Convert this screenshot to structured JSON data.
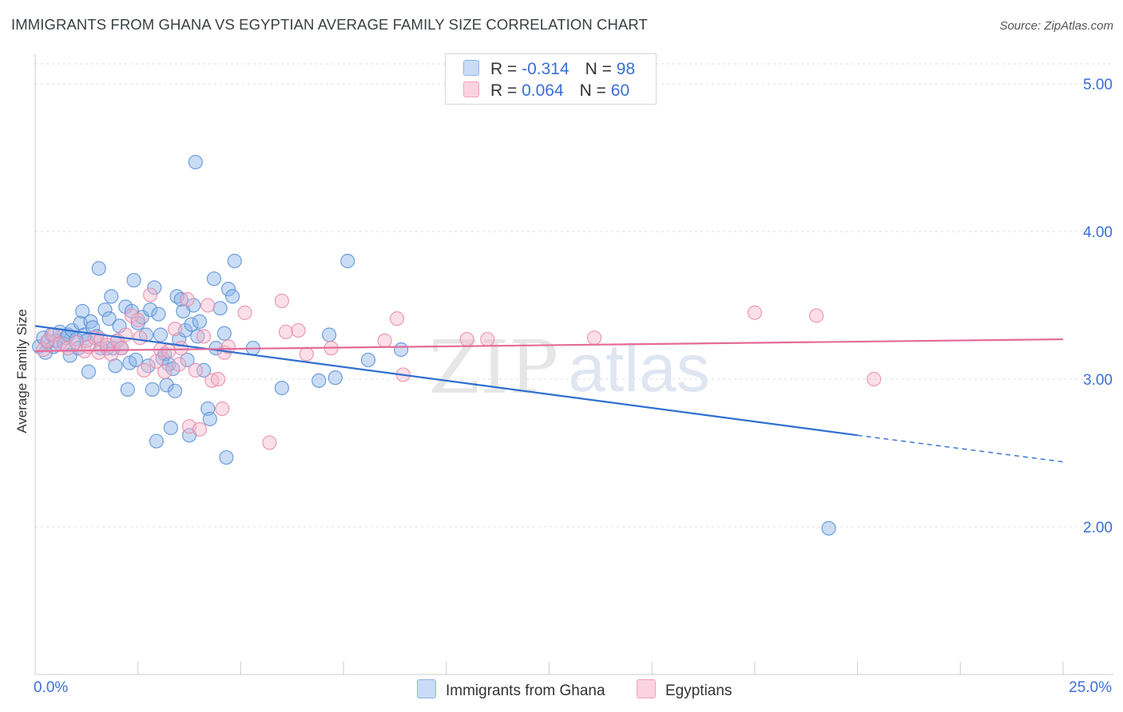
{
  "title": "IMMIGRANTS FROM GHANA VS EGYPTIAN AVERAGE FAMILY SIZE CORRELATION CHART",
  "source": "Source: ZipAtlas.com",
  "watermark": {
    "zip": "ZIP",
    "atlas": "atlas"
  },
  "legend": {
    "rows": [
      {
        "r_label": "R = ",
        "r_value": "-0.314",
        "n_label": "N = ",
        "n_value": "98"
      },
      {
        "r_label": "R = ",
        "r_value": "0.064",
        "n_label": "N = ",
        "n_value": "60"
      }
    ]
  },
  "chart_data": {
    "type": "scatter",
    "title": "IMMIGRANTS FROM GHANA VS EGYPTIAN AVERAGE FAMILY SIZE CORRELATION CHART",
    "xlabel": "",
    "ylabel": "Average Family Size",
    "xlim": [
      0,
      25
    ],
    "ylim": [
      1.0,
      5.2
    ],
    "x_tick_labels": [
      "0.0%",
      "25.0%"
    ],
    "y_ticks": [
      2.0,
      3.0,
      4.0,
      5.0
    ],
    "y_tick_labels": [
      "2.00",
      "3.00",
      "4.00",
      "5.00"
    ],
    "grid": "horizontal dashed",
    "legend_position": "top-center",
    "series": [
      {
        "name": "Immigrants from Ghana",
        "color": "#8ab4e8",
        "stroke": "#5a8fd6",
        "line_color": "#2f6fd0",
        "trend": {
          "x0": 0.0,
          "y0": 3.36,
          "x1": 20.0,
          "y1": 2.62,
          "dashed_to_x": 25.0,
          "dashed_to_y": 2.44
        },
        "points": [
          [
            0.1,
            3.22
          ],
          [
            0.2,
            3.28
          ],
          [
            0.25,
            3.18
          ],
          [
            0.3,
            3.25
          ],
          [
            0.4,
            3.3
          ],
          [
            0.45,
            3.22
          ],
          [
            0.5,
            3.26
          ],
          [
            0.6,
            3.32
          ],
          [
            0.7,
            3.24
          ],
          [
            0.75,
            3.28
          ],
          [
            0.8,
            3.3
          ],
          [
            0.85,
            3.16
          ],
          [
            0.9,
            3.33
          ],
          [
            1.0,
            3.27
          ],
          [
            1.05,
            3.21
          ],
          [
            1.1,
            3.38
          ],
          [
            1.15,
            3.46
          ],
          [
            1.2,
            3.3
          ],
          [
            1.25,
            3.26
          ],
          [
            1.3,
            3.05
          ],
          [
            1.35,
            3.39
          ],
          [
            1.4,
            3.35
          ],
          [
            1.5,
            3.29
          ],
          [
            1.55,
            3.75
          ],
          [
            1.6,
            3.21
          ],
          [
            1.7,
            3.47
          ],
          [
            1.75,
            3.21
          ],
          [
            1.8,
            3.41
          ],
          [
            1.85,
            3.56
          ],
          [
            1.9,
            3.21
          ],
          [
            1.95,
            3.09
          ],
          [
            2.0,
            3.26
          ],
          [
            2.05,
            3.36
          ],
          [
            2.1,
            3.21
          ],
          [
            2.2,
            3.49
          ],
          [
            2.25,
            2.93
          ],
          [
            2.3,
            3.11
          ],
          [
            2.35,
            3.46
          ],
          [
            2.4,
            3.67
          ],
          [
            2.45,
            3.13
          ],
          [
            2.5,
            3.38
          ],
          [
            2.6,
            3.42
          ],
          [
            2.7,
            3.3
          ],
          [
            2.75,
            3.09
          ],
          [
            2.8,
            3.47
          ],
          [
            2.85,
            2.93
          ],
          [
            2.9,
            3.62
          ],
          [
            2.95,
            2.58
          ],
          [
            3.0,
            3.44
          ],
          [
            3.05,
            3.3
          ],
          [
            3.1,
            3.14
          ],
          [
            3.15,
            3.17
          ],
          [
            3.2,
            2.96
          ],
          [
            3.25,
            3.1
          ],
          [
            3.3,
            2.67
          ],
          [
            3.35,
            3.07
          ],
          [
            3.4,
            2.92
          ],
          [
            3.45,
            3.56
          ],
          [
            3.5,
            3.27
          ],
          [
            3.55,
            3.54
          ],
          [
            3.6,
            3.46
          ],
          [
            3.65,
            3.33
          ],
          [
            3.7,
            3.13
          ],
          [
            3.75,
            2.62
          ],
          [
            3.8,
            3.37
          ],
          [
            3.85,
            3.5
          ],
          [
            3.9,
            4.47
          ],
          [
            3.95,
            3.29
          ],
          [
            4.0,
            3.39
          ],
          [
            4.1,
            3.06
          ],
          [
            4.2,
            2.8
          ],
          [
            4.25,
            2.73
          ],
          [
            4.35,
            3.68
          ],
          [
            4.4,
            3.21
          ],
          [
            4.5,
            3.48
          ],
          [
            4.6,
            3.31
          ],
          [
            4.65,
            2.47
          ],
          [
            4.7,
            3.61
          ],
          [
            4.8,
            3.56
          ],
          [
            4.85,
            3.8
          ],
          [
            5.3,
            3.21
          ],
          [
            6.0,
            2.94
          ],
          [
            6.9,
            2.99
          ],
          [
            7.15,
            3.3
          ],
          [
            7.3,
            3.01
          ],
          [
            7.6,
            3.8
          ],
          [
            8.1,
            3.13
          ],
          [
            8.9,
            3.2
          ],
          [
            19.3,
            1.99
          ]
        ]
      },
      {
        "name": "Egyptians",
        "color": "#f5b8cc",
        "stroke": "#e88aa8",
        "line_color": "#e36b97",
        "trend": {
          "x0": 0.0,
          "y0": 3.19,
          "x1": 25.0,
          "y1": 3.27
        },
        "points": [
          [
            0.2,
            3.2
          ],
          [
            0.3,
            3.26
          ],
          [
            0.45,
            3.3
          ],
          [
            0.6,
            3.24
          ],
          [
            0.8,
            3.21
          ],
          [
            1.0,
            3.25
          ],
          [
            1.2,
            3.19
          ],
          [
            1.3,
            3.22
          ],
          [
            1.45,
            3.28
          ],
          [
            1.55,
            3.18
          ],
          [
            1.6,
            3.27
          ],
          [
            1.75,
            3.23
          ],
          [
            1.85,
            3.17
          ],
          [
            2.0,
            3.26
          ],
          [
            2.1,
            3.21
          ],
          [
            2.2,
            3.3
          ],
          [
            2.35,
            3.43
          ],
          [
            2.5,
            3.4
          ],
          [
            2.55,
            3.28
          ],
          [
            2.65,
            3.06
          ],
          [
            2.8,
            3.57
          ],
          [
            2.95,
            3.12
          ],
          [
            3.05,
            3.2
          ],
          [
            3.15,
            3.05
          ],
          [
            3.25,
            3.19
          ],
          [
            3.4,
            3.34
          ],
          [
            3.5,
            3.1
          ],
          [
            3.55,
            3.21
          ],
          [
            3.7,
            3.54
          ],
          [
            3.75,
            2.68
          ],
          [
            3.9,
            3.06
          ],
          [
            4.0,
            2.66
          ],
          [
            4.1,
            3.29
          ],
          [
            4.2,
            3.5
          ],
          [
            4.3,
            2.99
          ],
          [
            4.45,
            3.0
          ],
          [
            4.55,
            2.8
          ],
          [
            4.6,
            3.18
          ],
          [
            4.7,
            3.22
          ],
          [
            5.1,
            3.45
          ],
          [
            5.7,
            2.57
          ],
          [
            6.0,
            3.53
          ],
          [
            6.1,
            3.32
          ],
          [
            6.4,
            3.33
          ],
          [
            6.6,
            3.17
          ],
          [
            7.2,
            3.21
          ],
          [
            8.5,
            3.26
          ],
          [
            8.8,
            3.41
          ],
          [
            8.95,
            3.03
          ],
          [
            10.5,
            3.27
          ],
          [
            11.0,
            3.27
          ],
          [
            13.6,
            3.28
          ],
          [
            17.5,
            3.45
          ],
          [
            19.0,
            3.43
          ],
          [
            20.4,
            3.0
          ]
        ]
      }
    ]
  }
}
